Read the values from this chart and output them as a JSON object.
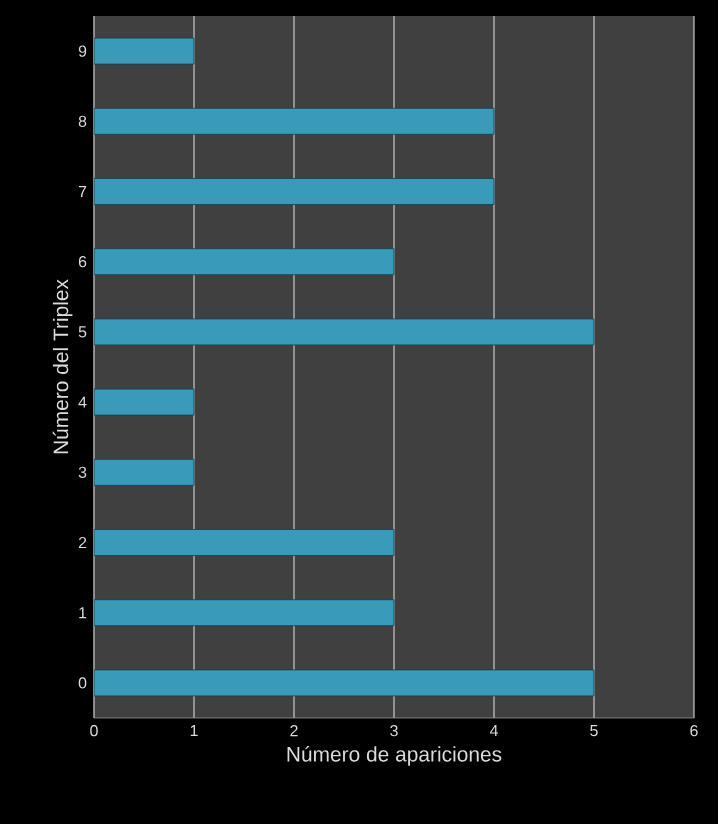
{
  "chart_data": {
    "type": "bar",
    "orientation": "horizontal",
    "xlabel": "Número  de apariciones",
    "ylabel": "Número  del Triplex",
    "categories": [
      "9",
      "8",
      "7",
      "6",
      "5",
      "4",
      "3",
      "2",
      "1",
      "0"
    ],
    "values": [
      1,
      4,
      4,
      3,
      5,
      1,
      1,
      3,
      3,
      5
    ],
    "color": "#3a9bb8",
    "xlim": [
      0,
      6
    ],
    "xticks": [
      0,
      1,
      2,
      3,
      4,
      5,
      6
    ],
    "grid": "x"
  }
}
